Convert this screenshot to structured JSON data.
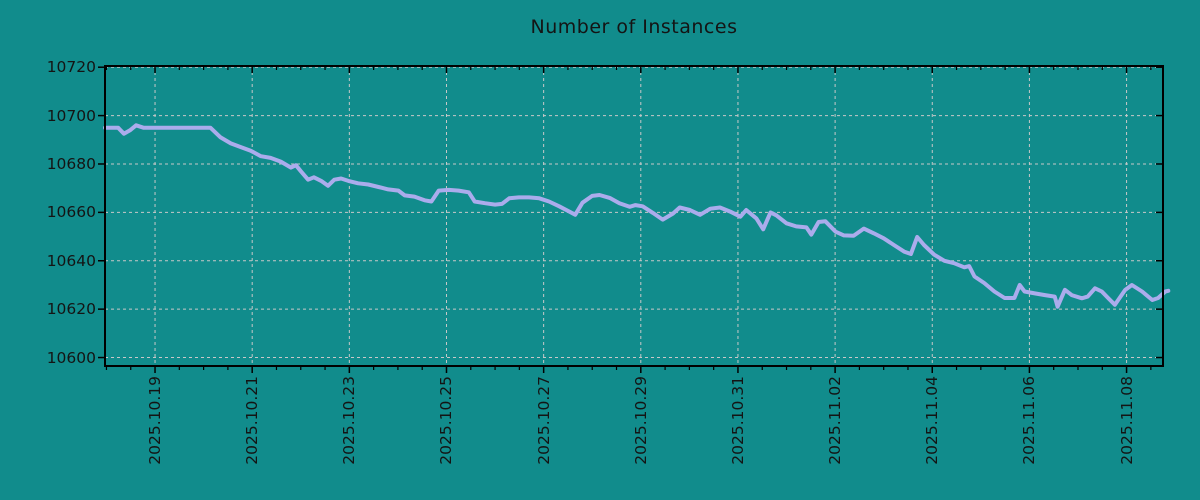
{
  "title": "Number of Instances",
  "colors": {
    "background": "#118c8c",
    "line": "#abacec",
    "grid": "#c8c8c8",
    "axis": "#000000",
    "text": "#141414"
  },
  "chart_data": {
    "type": "line",
    "title": "Number of Instances",
    "legend": "none",
    "grid": "dashed",
    "y_axis": {
      "ticks": [
        10600,
        10620,
        10640,
        10660,
        10680,
        10700,
        10720
      ],
      "range": [
        10596.5,
        10720.5
      ]
    },
    "x_axis": {
      "unit": "date",
      "range_days": [
        0,
        21.78
      ],
      "first_major_day": 1.03,
      "major_step_days": 2,
      "minor_tick_step_days": 0.5,
      "major_labels": [
        "2025.10.19",
        "2025.10.21",
        "2025.10.23",
        "2025.10.25",
        "2025.10.27",
        "2025.10.29",
        "2025.10.31",
        "2025.11.02",
        "2025.11.04",
        "2025.11.06",
        "2025.11.08"
      ]
    },
    "series": [
      {
        "name": "instances",
        "points": [
          [
            0.0,
            10695
          ],
          [
            0.27,
            10695
          ],
          [
            0.39,
            10692.5
          ],
          [
            0.52,
            10694
          ],
          [
            0.64,
            10696
          ],
          [
            0.79,
            10695
          ],
          [
            1.45,
            10695
          ],
          [
            2.17,
            10695
          ],
          [
            2.38,
            10691
          ],
          [
            2.59,
            10688.5
          ],
          [
            2.79,
            10687
          ],
          [
            3.0,
            10685.5
          ],
          [
            3.21,
            10683.2
          ],
          [
            3.41,
            10682.5
          ],
          [
            3.62,
            10681
          ],
          [
            3.83,
            10678.5
          ],
          [
            3.93,
            10679.5
          ],
          [
            4.03,
            10677
          ],
          [
            4.18,
            10673.5
          ],
          [
            4.3,
            10674.5
          ],
          [
            4.45,
            10673
          ],
          [
            4.59,
            10671
          ],
          [
            4.72,
            10673.5
          ],
          [
            4.86,
            10674
          ],
          [
            5.01,
            10673
          ],
          [
            5.21,
            10672
          ],
          [
            5.42,
            10671.5
          ],
          [
            5.63,
            10670.5
          ],
          [
            5.83,
            10669.5
          ],
          [
            6.04,
            10669
          ],
          [
            6.17,
            10667
          ],
          [
            6.37,
            10666.5
          ],
          [
            6.58,
            10665
          ],
          [
            6.72,
            10664.5
          ],
          [
            6.87,
            10669
          ],
          [
            7.08,
            10669.3
          ],
          [
            7.28,
            10669
          ],
          [
            7.49,
            10668.3
          ],
          [
            7.61,
            10664.5
          ],
          [
            7.82,
            10663.8
          ],
          [
            8.03,
            10663.2
          ],
          [
            8.17,
            10663.5
          ],
          [
            8.32,
            10665.8
          ],
          [
            8.52,
            10666.2
          ],
          [
            8.73,
            10666.2
          ],
          [
            8.94,
            10665.8
          ],
          [
            9.14,
            10664.5
          ],
          [
            9.35,
            10662.5
          ],
          [
            9.56,
            10660.3
          ],
          [
            9.68,
            10659
          ],
          [
            9.83,
            10664
          ],
          [
            10.03,
            10666.8
          ],
          [
            10.18,
            10667.2
          ],
          [
            10.39,
            10666
          ],
          [
            10.59,
            10663.8
          ],
          [
            10.8,
            10662.3
          ],
          [
            10.92,
            10663
          ],
          [
            11.07,
            10662.5
          ],
          [
            11.28,
            10659.8
          ],
          [
            11.48,
            10657
          ],
          [
            11.69,
            10659.5
          ],
          [
            11.83,
            10662
          ],
          [
            12.04,
            10661
          ],
          [
            12.25,
            10659
          ],
          [
            12.46,
            10661.5
          ],
          [
            12.66,
            10662
          ],
          [
            12.87,
            10660.3
          ],
          [
            13.08,
            10658.2
          ],
          [
            13.2,
            10661
          ],
          [
            13.41,
            10657.5
          ],
          [
            13.55,
            10653
          ],
          [
            13.7,
            10660
          ],
          [
            13.82,
            10658.8
          ],
          [
            14.03,
            10655.5
          ],
          [
            14.23,
            10654.2
          ],
          [
            14.44,
            10653.8
          ],
          [
            14.54,
            10650.8
          ],
          [
            14.69,
            10656
          ],
          [
            14.83,
            10656.3
          ],
          [
            15.04,
            10652
          ],
          [
            15.21,
            10650.5
          ],
          [
            15.41,
            10650.3
          ],
          [
            15.62,
            10653.3
          ],
          [
            15.83,
            10651.3
          ],
          [
            16.03,
            10649.3
          ],
          [
            16.24,
            10646.5
          ],
          [
            16.45,
            10643.8
          ],
          [
            16.59,
            10642.8
          ],
          [
            16.72,
            10649.8
          ],
          [
            16.86,
            10646.5
          ],
          [
            17.07,
            10642.5
          ],
          [
            17.28,
            10640
          ],
          [
            17.48,
            10639
          ],
          [
            17.69,
            10637.3
          ],
          [
            17.79,
            10637.8
          ],
          [
            17.9,
            10633.5
          ],
          [
            18.1,
            10630.8
          ],
          [
            18.31,
            10627.3
          ],
          [
            18.52,
            10624.6
          ],
          [
            18.72,
            10624.6
          ],
          [
            18.83,
            10630
          ],
          [
            18.93,
            10627.3
          ],
          [
            19.14,
            10626.5
          ],
          [
            19.35,
            10625.8
          ],
          [
            19.55,
            10625.2
          ],
          [
            19.61,
            10621
          ],
          [
            19.76,
            10628
          ],
          [
            19.9,
            10625.8
          ],
          [
            20.11,
            10624.5
          ],
          [
            20.23,
            10625.2
          ],
          [
            20.38,
            10628.6
          ],
          [
            20.52,
            10627.3
          ],
          [
            20.65,
            10624.6
          ],
          [
            20.79,
            10621.8
          ],
          [
            21.0,
            10627.9
          ],
          [
            21.14,
            10630
          ],
          [
            21.35,
            10627.3
          ],
          [
            21.56,
            10623.8
          ],
          [
            21.68,
            10624.6
          ],
          [
            21.83,
            10627.3
          ],
          [
            21.89,
            10627.6
          ]
        ]
      }
    ]
  }
}
